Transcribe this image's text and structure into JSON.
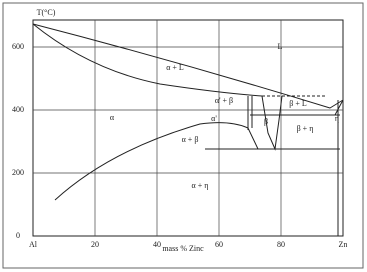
{
  "axis": {
    "y_label": "T(°C)",
    "x_label": "mass % Zinc",
    "yticks": [
      "600",
      "400",
      "200",
      "0"
    ],
    "xticks": [
      "Al",
      "20",
      "40",
      "60",
      "80",
      "Zn"
    ]
  },
  "regions": [
    "L",
    "α + L",
    "α' + β",
    "α'",
    "α",
    "β",
    "β + L",
    "η",
    "β + η",
    "α + β",
    "α + η"
  ]
}
